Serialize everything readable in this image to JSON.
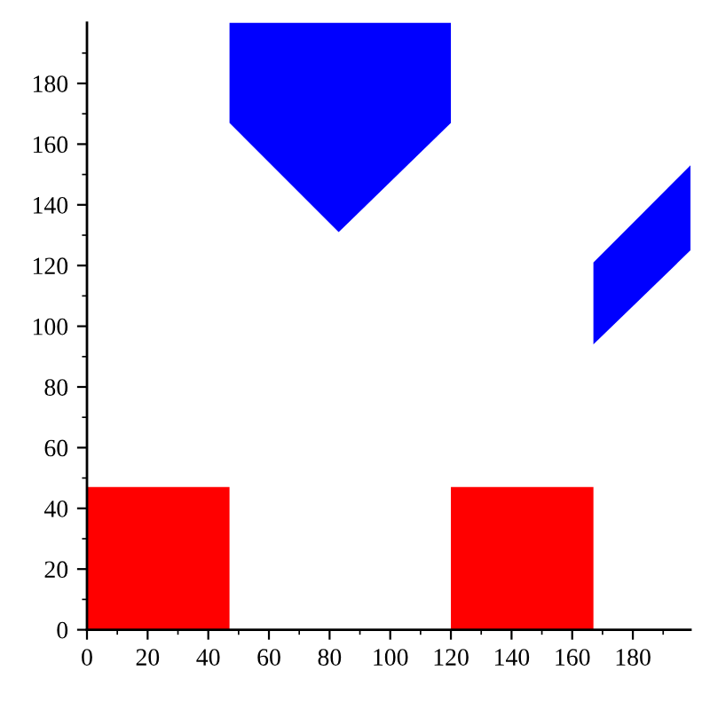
{
  "chart_data": {
    "type": "area",
    "series": [
      {
        "color": "#ff0000",
        "x": [
          0,
          47
        ],
        "values": [
          47,
          47
        ]
      },
      {
        "color": "#ff0000",
        "x": [
          120,
          167
        ],
        "values": [
          47,
          47
        ]
      },
      {
        "color": "#0000ff",
        "x": [
          47,
          83,
          120
        ],
        "values": [
          null,
          null,
          null
        ],
        "lower": [
          167,
          131,
          167
        ],
        "upper": [
          200,
          200,
          200
        ]
      },
      {
        "color": "#0000ff",
        "x": [
          167,
          199
        ],
        "values": [
          null,
          null
        ],
        "lower": [
          94,
          125
        ],
        "upper": [
          121,
          153
        ]
      }
    ],
    "xlim": [
      0,
      199
    ],
    "ylim": [
      0,
      200
    ],
    "xticks": [
      0,
      {
        "value": 10,
        "label": null
      },
      20,
      {
        "value": 30,
        "label": null
      },
      40,
      {
        "value": 50,
        "label": null
      },
      60,
      {
        "value": 70,
        "label": null
      },
      80,
      {
        "value": 90,
        "label": null
      },
      100,
      {
        "value": 110,
        "label": null
      },
      120,
      {
        "value": 130,
        "label": null
      },
      140,
      {
        "value": 150,
        "label": null
      },
      160,
      {
        "value": 170,
        "label": null
      },
      180,
      {
        "value": 190,
        "label": null
      }
    ],
    "yticks": [
      0,
      {
        "value": 10,
        "label": null
      },
      20,
      {
        "value": 30,
        "label": null
      },
      40,
      {
        "value": 50,
        "label": null
      },
      60,
      {
        "value": 70,
        "label": null
      },
      80,
      {
        "value": 90,
        "label": null
      },
      100,
      {
        "value": 110,
        "label": null
      },
      120,
      {
        "value": 130,
        "label": null
      },
      140,
      {
        "value": 150,
        "label": null
      },
      160,
      {
        "value": 170,
        "label": null
      },
      180,
      {
        "value": 190,
        "label": null
      }
    ]
  }
}
